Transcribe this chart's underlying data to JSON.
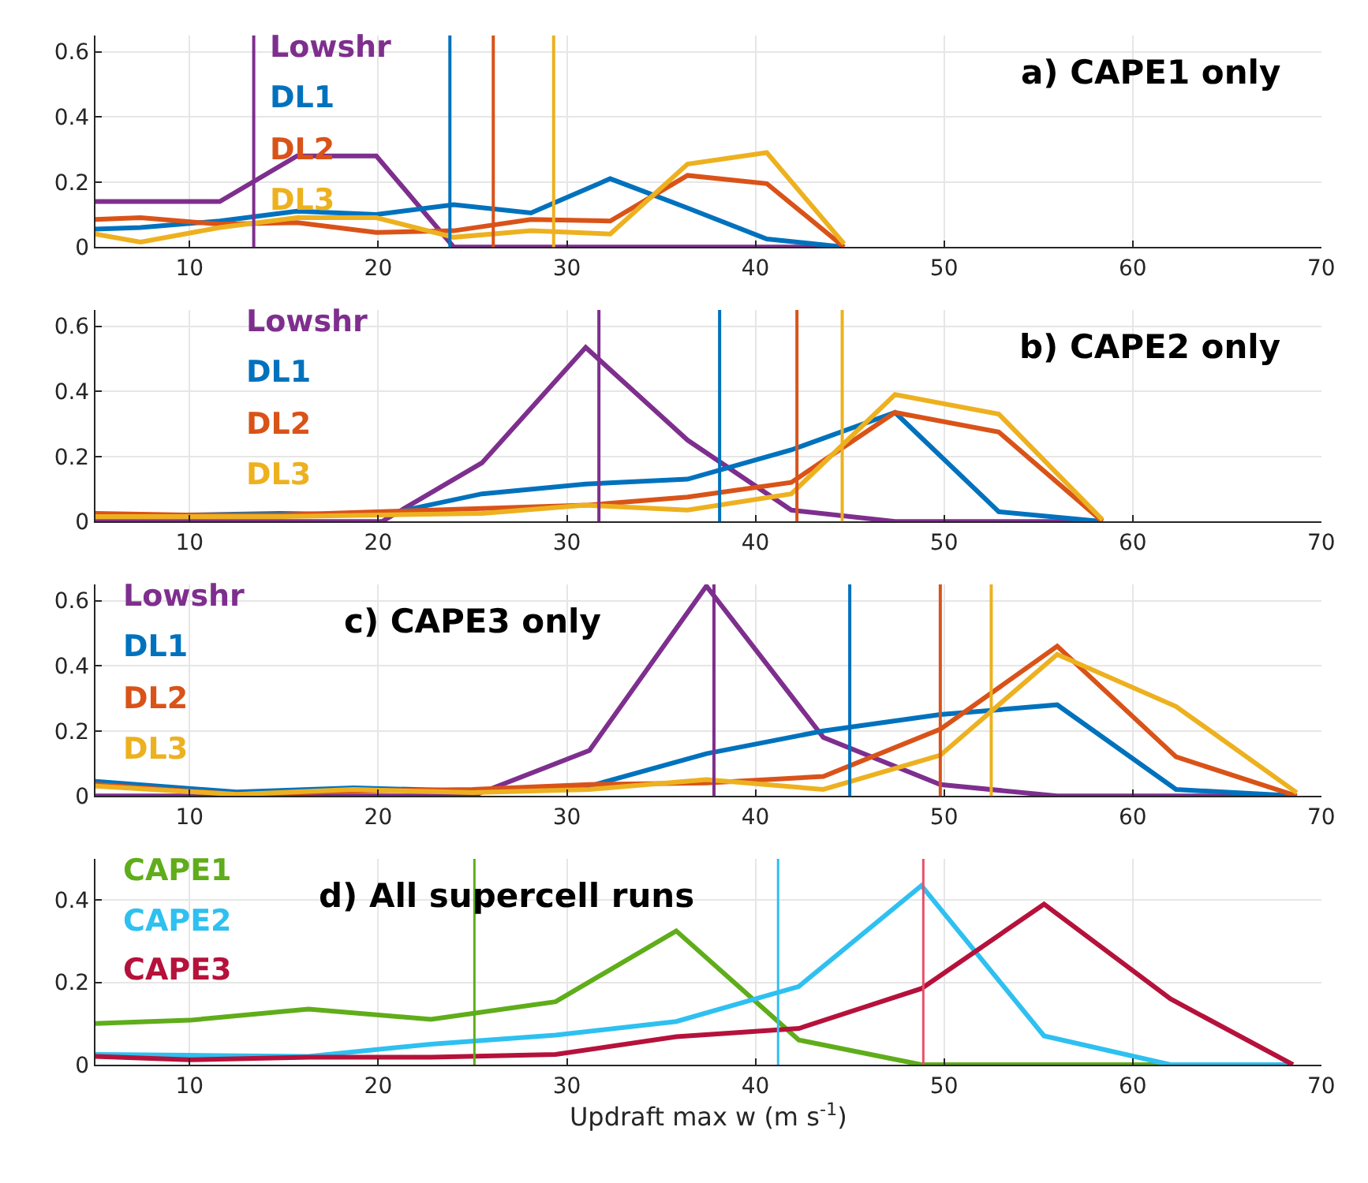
{
  "chart_data": [
    {
      "type": "line",
      "title": "a) CAPE1 only",
      "xlim": [
        5,
        70
      ],
      "xticks": [
        10,
        20,
        30,
        40,
        50,
        60,
        70
      ],
      "ylim": [
        0,
        0.65
      ],
      "yticks": [
        0,
        0.2,
        0.4,
        0.6
      ],
      "grid": true,
      "legend": false,
      "x": [
        5,
        7.4,
        11.6,
        15.7,
        19.9,
        24.0,
        28.1,
        32.3,
        36.4,
        40.6,
        44.7
      ],
      "series": [
        {
          "name": "Lowshr",
          "color": "#7e2f8e",
          "values": [
            0.14,
            0.14,
            0.14,
            0.28,
            0.28,
            0,
            0,
            0,
            0,
            0,
            0
          ]
        },
        {
          "name": "DL1",
          "color": "#0072bd",
          "values": [
            0.055,
            0.06,
            0.08,
            0.11,
            0.1,
            0.13,
            0.105,
            0.21,
            0.12,
            0.025,
            0
          ]
        },
        {
          "name": "DL2",
          "color": "#d95319",
          "values": [
            0.085,
            0.09,
            0.07,
            0.075,
            0.045,
            0.05,
            0.085,
            0.08,
            0.22,
            0.195,
            0
          ]
        },
        {
          "name": "DL3",
          "color": "#edb120",
          "values": [
            0.04,
            0.015,
            0.06,
            0.09,
            0.09,
            0.03,
            0.05,
            0.04,
            0.255,
            0.29,
            0.01
          ]
        }
      ],
      "ref_lines": [
        {
          "axis": "x",
          "value": 13.4,
          "color": "#7e2f8e"
        },
        {
          "axis": "x",
          "value": 23.8,
          "color": "#0072bd"
        },
        {
          "axis": "x",
          "value": 26.1,
          "color": "#d95319"
        },
        {
          "axis": "x",
          "value": 29.3,
          "color": "#edb120"
        }
      ]
    },
    {
      "type": "line",
      "title": "b) CAPE2 only",
      "xlim": [
        5,
        70
      ],
      "xticks": [
        10,
        20,
        30,
        40,
        50,
        60,
        70
      ],
      "ylim": [
        0,
        0.65
      ],
      "yticks": [
        0,
        0.2,
        0.4,
        0.6
      ],
      "grid": true,
      "legend": false,
      "x": [
        5,
        9.8,
        14.8,
        20.2,
        25.5,
        31.0,
        36.4,
        41.9,
        47.4,
        52.9,
        58.4
      ],
      "series": [
        {
          "name": "Lowshr",
          "color": "#7e2f8e",
          "values": [
            0,
            0,
            0,
            0,
            0.18,
            0.535,
            0.25,
            0.035,
            0,
            0,
            0
          ]
        },
        {
          "name": "DL1",
          "color": "#0072bd",
          "values": [
            0.02,
            0.02,
            0.025,
            0.02,
            0.085,
            0.115,
            0.13,
            0.22,
            0.335,
            0.03,
            0
          ]
        },
        {
          "name": "DL2",
          "color": "#d95319",
          "values": [
            0.025,
            0.02,
            0.02,
            0.03,
            0.04,
            0.05,
            0.075,
            0.12,
            0.335,
            0.275,
            0
          ]
        },
        {
          "name": "DL3",
          "color": "#edb120",
          "values": [
            0.015,
            0.015,
            0.015,
            0.02,
            0.025,
            0.05,
            0.035,
            0.085,
            0.39,
            0.33,
            0.005
          ]
        }
      ],
      "ref_lines": [
        {
          "axis": "x",
          "value": 31.7,
          "color": "#7e2f8e"
        },
        {
          "axis": "x",
          "value": 38.1,
          "color": "#0072bd"
        },
        {
          "axis": "x",
          "value": 42.2,
          "color": "#d95319"
        },
        {
          "axis": "x",
          "value": 44.6,
          "color": "#edb120"
        }
      ]
    },
    {
      "type": "line",
      "title": "c) CAPE3 only",
      "xlim": [
        5,
        70
      ],
      "xticks": [
        10,
        20,
        30,
        40,
        50,
        60,
        70
      ],
      "ylim": [
        0,
        0.65
      ],
      "yticks": [
        0,
        0.2,
        0.4,
        0.6
      ],
      "grid": true,
      "legend": false,
      "x": [
        5,
        12.5,
        18.7,
        25.0,
        31.2,
        37.4,
        43.6,
        49.8,
        56.0,
        62.3,
        68.7
      ],
      "series": [
        {
          "name": "Lowshr",
          "color": "#7e2f8e",
          "values": [
            0,
            0,
            0,
            0,
            0.14,
            0.645,
            0.18,
            0.035,
            0,
            0,
            0
          ]
        },
        {
          "name": "DL1",
          "color": "#0072bd",
          "values": [
            0.045,
            0.012,
            0.025,
            0.015,
            0.03,
            0.13,
            0.2,
            0.25,
            0.28,
            0.02,
            0
          ]
        },
        {
          "name": "DL2",
          "color": "#d95319",
          "values": [
            0.035,
            0.005,
            0.015,
            0.02,
            0.035,
            0.04,
            0.06,
            0.205,
            0.46,
            0.12,
            0
          ]
        },
        {
          "name": "DL3",
          "color": "#edb120",
          "values": [
            0.03,
            0.005,
            0.02,
            0.01,
            0.02,
            0.05,
            0.02,
            0.125,
            0.435,
            0.275,
            0.01
          ]
        }
      ],
      "ref_lines": [
        {
          "axis": "x",
          "value": 37.8,
          "color": "#7e2f8e"
        },
        {
          "axis": "x",
          "value": 45.0,
          "color": "#0072bd"
        },
        {
          "axis": "x",
          "value": 49.8,
          "color": "#d95319"
        },
        {
          "axis": "x",
          "value": 52.5,
          "color": "#edb120"
        }
      ]
    },
    {
      "type": "line",
      "title": "d) All supercell runs",
      "xlabel": "Updraft max w (m s$^{-1}$)",
      "xlim": [
        5,
        70
      ],
      "xticks": [
        10,
        20,
        30,
        40,
        50,
        60,
        70
      ],
      "ylim": [
        0,
        0.5
      ],
      "yticks": [
        0,
        0.2,
        0.4
      ],
      "grid": true,
      "legend": false,
      "x": [
        5,
        10.0,
        16.3,
        22.8,
        29.4,
        35.8,
        42.3,
        48.8,
        55.3,
        62.0,
        68.5
      ],
      "series": [
        {
          "name": "CAPE1",
          "color": "#5fad1a",
          "values": [
            0.1,
            0.108,
            0.135,
            0.11,
            0.153,
            0.325,
            0.06,
            0,
            0,
            0,
            null
          ]
        },
        {
          "name": "CAPE2",
          "color": "#2ec0f0",
          "values": [
            0.025,
            0.023,
            0.02,
            0.05,
            0.072,
            0.105,
            0.19,
            0.435,
            0.07,
            0,
            0
          ]
        },
        {
          "name": "CAPE3",
          "color": "#b5123b",
          "values": [
            0.02,
            0.012,
            0.018,
            0.018,
            0.025,
            0.068,
            0.088,
            0.185,
            0.39,
            0.16,
            0
          ]
        }
      ],
      "ref_lines": [
        {
          "axis": "x",
          "value": 25.1,
          "color": "#5fad1a"
        },
        {
          "axis": "x",
          "value": 41.2,
          "color": "#2ec0f0"
        },
        {
          "axis": "x",
          "value": 48.9,
          "color": "#e8506a"
        }
      ]
    }
  ]
}
